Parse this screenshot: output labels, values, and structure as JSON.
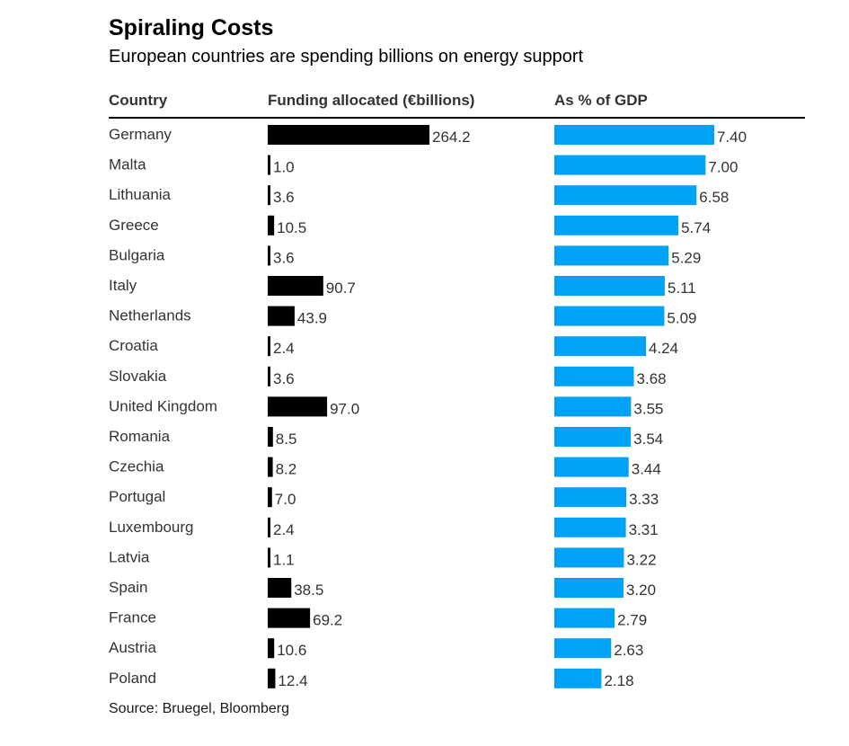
{
  "title": "Spiraling Costs",
  "subtitle": "European countries are spending billions on energy support",
  "headers": {
    "country": "Country",
    "funding": "Funding allocated (€billions)",
    "gdp": "As % of GDP"
  },
  "source": "Source: Bruegel, Bloomberg",
  "colors": {
    "funding_bar": "#000000",
    "gdp_bar": "#00a2f5",
    "text": "#333333"
  },
  "chart_data": {
    "type": "bar",
    "orientation": "horizontal",
    "categories": [
      "Germany",
      "Malta",
      "Lithuania",
      "Greece",
      "Bulgaria",
      "Italy",
      "Netherlands",
      "Croatia",
      "Slovakia",
      "United Kingdom",
      "Romania",
      "Czechia",
      "Portugal",
      "Luxembourg",
      "Latvia",
      "Spain",
      "France",
      "Austria",
      "Poland"
    ],
    "series": [
      {
        "name": "Funding allocated (€billions)",
        "values": [
          264.2,
          1.0,
          3.6,
          10.5,
          3.6,
          90.7,
          43.9,
          2.4,
          3.6,
          97.0,
          8.5,
          8.2,
          7.0,
          2.4,
          1.1,
          38.5,
          69.2,
          10.6,
          12.4
        ],
        "labels": [
          "264.2",
          "1.0",
          "3.6",
          "10.5",
          "3.6",
          "90.7",
          "43.9",
          "2.4",
          "3.6",
          "97.0",
          "8.5",
          "8.2",
          "7.0",
          "2.4",
          "1.1",
          "38.5",
          "69.2",
          "10.6",
          "12.4"
        ]
      },
      {
        "name": "As % of GDP",
        "values": [
          7.4,
          7.0,
          6.58,
          5.74,
          5.29,
          5.11,
          5.09,
          4.24,
          3.68,
          3.55,
          3.54,
          3.44,
          3.33,
          3.31,
          3.22,
          3.2,
          2.79,
          2.63,
          2.18
        ],
        "labels": [
          "7.40",
          "7.00",
          "6.58",
          "5.74",
          "5.29",
          "5.11",
          "5.09",
          "4.24",
          "3.68",
          "3.55",
          "3.54",
          "3.44",
          "3.33",
          "3.31",
          "3.22",
          "3.20",
          "2.79",
          "2.63",
          "2.18"
        ]
      }
    ],
    "grid": false,
    "legend": "none"
  }
}
